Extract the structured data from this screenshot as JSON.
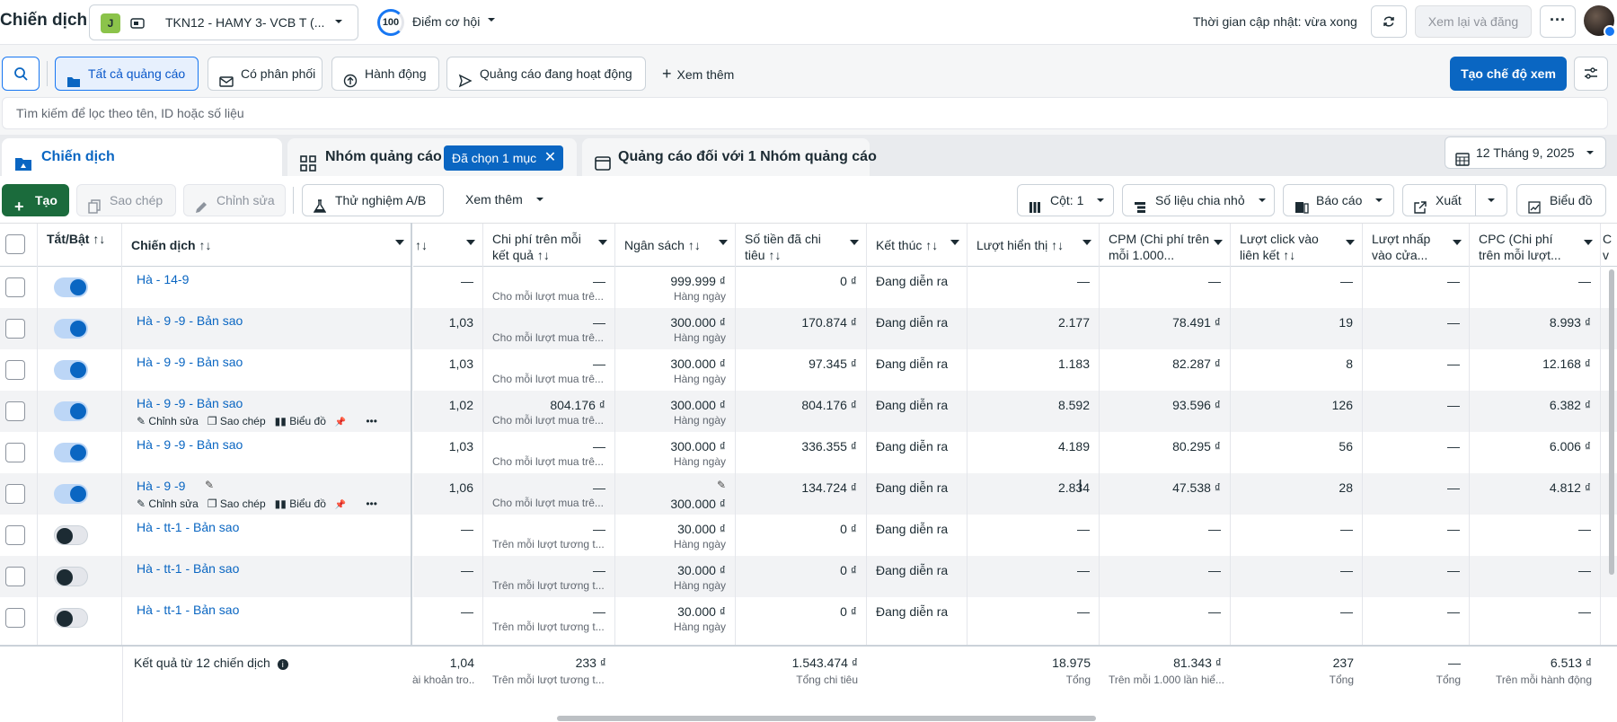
{
  "topbar": {
    "title": "Chiến dịch",
    "account_initial": "J",
    "account_name": "TKN12 - HAMY 3- VCB T (...",
    "score": "100",
    "score_label": "Điểm cơ hội",
    "updated": "Thời gian cập nhật: vừa xong",
    "review_label": "Xem lại và đăng",
    "more": "···"
  },
  "filters": {
    "all_ads": "Tất cả quảng cáo",
    "delivery": "Có phân phối",
    "actions": "Hành động",
    "active_ads": "Quảng cáo đang hoạt động",
    "see_more": "Xem thêm",
    "create_view": "Tạo chế độ xem",
    "search_placeholder": "Tìm kiếm để lọc theo tên, ID hoặc số liệu"
  },
  "tabs": {
    "campaigns": "Chiến dịch",
    "adsets": "Nhóm quảng cáo",
    "selected_tag": "Đã chọn 1 mục",
    "ads": "Quảng cáo đối với 1 Nhóm quảng cáo",
    "date": "12 Tháng 9, 2025"
  },
  "toolbar": {
    "create": "Tạo",
    "duplicate": "Sao chép",
    "edit": "Chỉnh sửa",
    "ab_test": "Thử nghiệm A/B",
    "more": "Xem thêm",
    "columns": "Cột: 1",
    "breakdown": "Số liệu chia nhỏ",
    "reports": "Báo cáo",
    "export": "Xuất",
    "charts": "Biểu đồ"
  },
  "headers": {
    "toggle": "Tắt/Bật ↑↓",
    "campaign": "Chiến dịch ↑↓",
    "freq": "↑↓",
    "cost_per_result": "Chi phí trên mỗi kết quả ↑↓",
    "budget": "Ngân sách ↑↓",
    "spent": "Số tiền đã chi tiêu ↑↓",
    "ends": "Kết thúc ↑↓",
    "impressions": "Lượt hiển thị ↑↓",
    "cpm": "CPM (Chi phí trên mỗi 1.000...",
    "link_clicks": "Lượt click vào liên kết ↑↓",
    "outbound": "Lượt nhấp vào cửa...",
    "cpc": "CPC (Chi phí trên mỗi lượt...",
    "extra": "C v"
  },
  "row_actions": {
    "edit": "Chỉnh sửa",
    "duplicate": "Sao chép",
    "chart": "Biểu đồ"
  },
  "rows": [
    {
      "name": "Hà - 14-9",
      "on": true,
      "freq": "—",
      "cpr": "—",
      "cpr_sub": "Cho mỗi lượt mua trê...",
      "budget": "999.999 ₫",
      "budget_sub": "Hàng ngày",
      "spent": "0 ₫",
      "ends": "Đang diễn ra",
      "impr": "—",
      "cpm": "—",
      "clicks": "—",
      "outbound": "—",
      "cpc": "—"
    },
    {
      "name": "Hà - 9 -9 - Bản sao",
      "on": true,
      "freq": "1,03",
      "cpr": "—",
      "cpr_sub": "Cho mỗi lượt mua trê...",
      "budget": "300.000 ₫",
      "budget_sub": "Hàng ngày",
      "spent": "170.874 ₫",
      "ends": "Đang diễn ra",
      "impr": "2.177",
      "cpm": "78.491 ₫",
      "clicks": "19",
      "outbound": "—",
      "cpc": "8.993 ₫"
    },
    {
      "name": "Hà - 9 -9 - Bản sao",
      "on": true,
      "freq": "1,03",
      "cpr": "—",
      "cpr_sub": "Cho mỗi lượt mua trê...",
      "budget": "300.000 ₫",
      "budget_sub": "Hàng ngày",
      "spent": "97.345 ₫",
      "ends": "Đang diễn ra",
      "impr": "1.183",
      "cpm": "82.287 ₫",
      "clicks": "8",
      "outbound": "—",
      "cpc": "12.168 ₫"
    },
    {
      "name": "Hà - 9 -9 - Bản sao",
      "on": true,
      "freq": "1,02",
      "cpr": "804.176 ₫",
      "cpr_sub": "Cho mỗi lượt mua trê...",
      "budget": "300.000 ₫",
      "budget_sub": "Hàng ngày",
      "spent": "804.176 ₫",
      "ends": "Đang diễn ra",
      "impr": "8.592",
      "cpm": "93.596 ₫",
      "clicks": "126",
      "outbound": "—",
      "cpc": "6.382 ₫"
    },
    {
      "name": "Hà - 9 -9 - Bản sao",
      "on": true,
      "freq": "1,03",
      "cpr": "—",
      "cpr_sub": "Cho mỗi lượt mua trê...",
      "budget": "300.000 ₫",
      "budget_sub": "Hàng ngày",
      "spent": "336.355 ₫",
      "ends": "Đang diễn ra",
      "impr": "4.189",
      "cpm": "80.295 ₫",
      "clicks": "56",
      "outbound": "—",
      "cpc": "6.006 ₫"
    },
    {
      "name": "Hà - 9 -9",
      "on": true,
      "freq": "1,06",
      "cpr": "—",
      "cpr_sub": "Cho mỗi lượt mua trê...",
      "budget": "300.000 ₫",
      "budget_sub": "",
      "spent": "134.724 ₫",
      "ends": "Đang diễn ra",
      "impr": "2.834",
      "cpm": "47.538 ₫",
      "clicks": "28",
      "outbound": "—",
      "cpc": "4.812 ₫"
    },
    {
      "name": "Hà - tt-1 - Bản sao",
      "on": false,
      "freq": "—",
      "cpr": "—",
      "cpr_sub": "Trên mỗi lượt tương t...",
      "budget": "30.000 ₫",
      "budget_sub": "Hàng ngày",
      "spent": "0 ₫",
      "ends": "Đang diễn ra",
      "impr": "—",
      "cpm": "—",
      "clicks": "—",
      "outbound": "—",
      "cpc": "—"
    },
    {
      "name": "Hà - tt-1 - Bản sao",
      "on": false,
      "freq": "—",
      "cpr": "—",
      "cpr_sub": "Trên mỗi lượt tương t...",
      "budget": "30.000 ₫",
      "budget_sub": "Hàng ngày",
      "spent": "0 ₫",
      "ends": "Đang diễn ra",
      "impr": "—",
      "cpm": "—",
      "clicks": "—",
      "outbound": "—",
      "cpc": "—"
    },
    {
      "name": "Hà - tt-1 - Bản sao",
      "on": false,
      "freq": "—",
      "cpr": "—",
      "cpr_sub": "Trên mỗi lượt tương t...",
      "budget": "30.000 ₫",
      "budget_sub": "Hàng ngày",
      "spent": "0 ₫",
      "ends": "Đang diễn ra",
      "impr": "—",
      "cpm": "—",
      "clicks": "—",
      "outbound": "—",
      "cpc": "—"
    }
  ],
  "footer": {
    "label": "Kết quả từ 12 chiến dịch",
    "freq": "1,04",
    "freq_sub": "ài khoản tro...",
    "cpr": "233 ₫",
    "cpr_sub": "Trên mỗi lượt tương t...",
    "spent": "1.543.474 ₫",
    "spent_sub": "Tổng chi tiêu",
    "impr": "18.975",
    "impr_sub": "Tổng",
    "cpm": "81.343 ₫",
    "cpm_sub": "Trên mỗi 1.000 lần hiể...",
    "clicks": "237",
    "clicks_sub": "Tổng",
    "outbound": "—",
    "outbound_sub": "Tổng",
    "cpc": "6.513 ₫",
    "cpc_sub": "Trên mỗi hành động"
  },
  "colors": {
    "primary": "#0a66c2",
    "create": "#1b6b3c",
    "toggle_on": "#0a66c2"
  }
}
